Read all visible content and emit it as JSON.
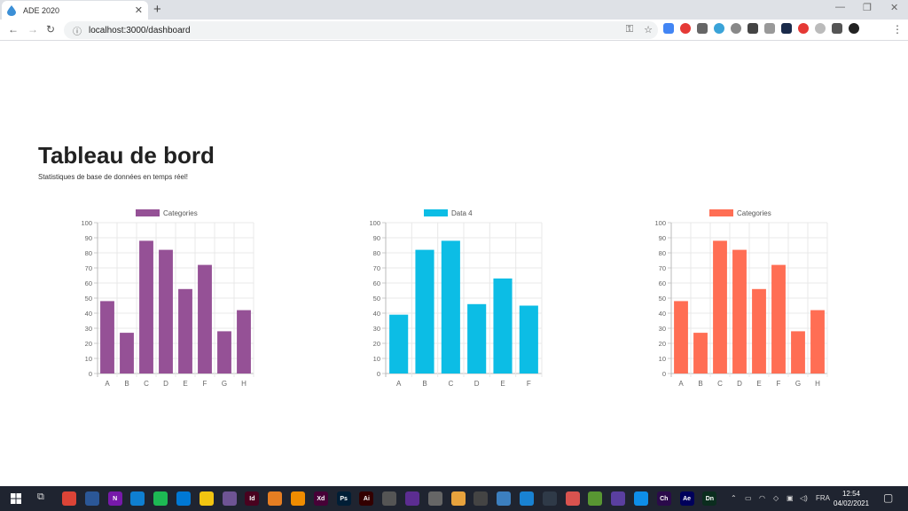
{
  "browser": {
    "tab_title": "ADE 2020",
    "url": "localhost:3000/dashboard"
  },
  "page": {
    "title": "Tableau de bord",
    "subtitle": "Statistiques de base de données en temps réel!"
  },
  "chart_data": [
    {
      "type": "bar",
      "legend": "Categories",
      "color": "#955196",
      "categories": [
        "A",
        "B",
        "C",
        "D",
        "E",
        "F",
        "G",
        "H"
      ],
      "values": [
        48,
        27,
        88,
        82,
        56,
        72,
        28,
        42
      ],
      "ylim": [
        0,
        100
      ],
      "yticks": [
        0,
        10,
        20,
        30,
        40,
        50,
        60,
        70,
        80,
        90,
        100
      ],
      "grid": true,
      "legend_position": "top"
    },
    {
      "type": "bar",
      "legend": "Data 4",
      "color": "#0cbde5",
      "categories": [
        "A",
        "B",
        "C",
        "D",
        "E",
        "F"
      ],
      "values": [
        39,
        82,
        88,
        46,
        63,
        45
      ],
      "ylim": [
        0,
        100
      ],
      "yticks": [
        0,
        10,
        20,
        30,
        40,
        50,
        60,
        70,
        80,
        90,
        100
      ],
      "grid": true,
      "legend_position": "top"
    },
    {
      "type": "bar",
      "legend": "Categories",
      "color": "#ff6e54",
      "categories": [
        "A",
        "B",
        "C",
        "D",
        "E",
        "F",
        "G",
        "H"
      ],
      "values": [
        48,
        27,
        88,
        82,
        56,
        72,
        28,
        42
      ],
      "ylim": [
        0,
        100
      ],
      "yticks": [
        0,
        10,
        20,
        30,
        40,
        50,
        60,
        70,
        80,
        90,
        100
      ],
      "grid": true,
      "legend_position": "top"
    }
  ],
  "taskbar": {
    "tray_lang": "FRA",
    "time": "12:54",
    "date": "04/02/2021",
    "apps": [
      {
        "icon": "chrome-icon",
        "label": "",
        "color": "#db4437"
      },
      {
        "icon": "powershell-icon",
        "label": "",
        "color": "#2b5797"
      },
      {
        "icon": "onenote-icon",
        "label": "N",
        "color": "#7719aa"
      },
      {
        "icon": "edge-icon",
        "label": "",
        "color": "#0f7fd1"
      },
      {
        "icon": "spotify-icon",
        "label": "",
        "color": "#1db954"
      },
      {
        "icon": "vscode-icon",
        "label": "",
        "color": "#0078d4"
      },
      {
        "icon": "explorer-icon",
        "label": "",
        "color": "#f2c511"
      },
      {
        "icon": "github-icon",
        "label": "",
        "color": "#6e5494"
      },
      {
        "icon": "indesign-icon",
        "label": "Id",
        "color": "#49021f"
      },
      {
        "icon": "pinwheel-icon",
        "label": "",
        "color": "#e67e22"
      },
      {
        "icon": "vlc-icon",
        "label": "",
        "color": "#f08c00"
      },
      {
        "icon": "xd-icon",
        "label": "Xd",
        "color": "#470137"
      },
      {
        "icon": "photoshop-icon",
        "label": "Ps",
        "color": "#001e36"
      },
      {
        "icon": "illustrator-icon",
        "label": "Ai",
        "color": "#330000"
      },
      {
        "icon": "pen-icon",
        "label": "",
        "color": "#555555"
      },
      {
        "icon": "visualstudio-icon",
        "label": "",
        "color": "#5c2d91"
      },
      {
        "icon": "tools-icon",
        "label": "",
        "color": "#666666"
      },
      {
        "icon": "box-icon",
        "label": "",
        "color": "#e8a33d"
      },
      {
        "icon": "settings-icon",
        "label": "",
        "color": "#444444"
      },
      {
        "icon": "ssms-icon",
        "label": "",
        "color": "#3c7fbf"
      },
      {
        "icon": "app-icon",
        "label": "",
        "color": "#1982d2"
      },
      {
        "icon": "arrow-icon",
        "label": "",
        "color": "#2f3a48"
      },
      {
        "icon": "heart-icon",
        "label": "",
        "color": "#d9534f"
      },
      {
        "icon": "qgis-icon",
        "label": "",
        "color": "#589632"
      },
      {
        "icon": "audio-icon",
        "label": "",
        "color": "#5a3fa0"
      },
      {
        "icon": "teamviewer-icon",
        "label": "",
        "color": "#0e8ee9"
      },
      {
        "icon": "character-icon",
        "label": "Ch",
        "color": "#2a0a4a"
      },
      {
        "icon": "aftereffects-icon",
        "label": "Ae",
        "color": "#00005b"
      },
      {
        "icon": "dimension-icon",
        "label": "Dn",
        "color": "#0b2d1e"
      }
    ]
  }
}
